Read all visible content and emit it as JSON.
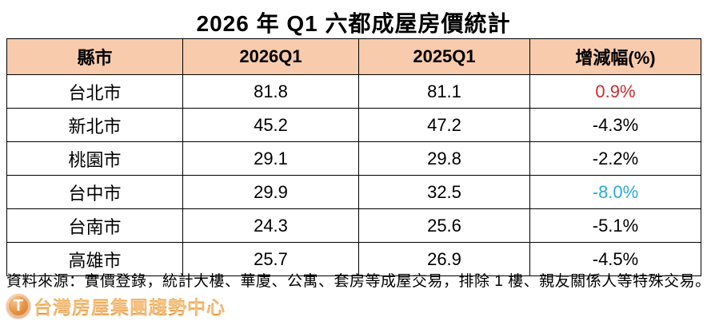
{
  "title": "2026 年 Q1  六都成屋房價統計",
  "table": {
    "headers": [
      "縣市",
      "2026Q1",
      "2025Q1",
      "增減幅(%)"
    ],
    "rows": [
      {
        "city": "台北市",
        "y2026q1": "81.8",
        "y2025q1": "81.1",
        "change": "0.9%",
        "change_color": "positive"
      },
      {
        "city": "新北市",
        "y2026q1": "45.2",
        "y2025q1": "47.2",
        "change": "-4.3%",
        "change_color": "default"
      },
      {
        "city": "桃園市",
        "y2026q1": "29.1",
        "y2025q1": "29.8",
        "change": "-2.2%",
        "change_color": "default"
      },
      {
        "city": "台中市",
        "y2026q1": "29.9",
        "y2025q1": "32.5",
        "change": "-8.0%",
        "change_color": "highlight_negative"
      },
      {
        "city": "台南市",
        "y2026q1": "24.3",
        "y2025q1": "25.6",
        "change": "-5.1%",
        "change_color": "default"
      },
      {
        "city": "高雄市",
        "y2026q1": "25.7",
        "y2025q1": "26.9",
        "change": "-4.5%",
        "change_color": "default"
      }
    ]
  },
  "footnote": "資料來源：實價登錄，統計大樓、華廈、公寓、套房等成屋交易，排除 1 樓、親友關係人等特殊交易。",
  "logo": {
    "badge_letter": "T",
    "text": "台灣房屋集團趨勢中心"
  },
  "colors": {
    "header_bg": "#F8CBAD",
    "positive": "#D02B2B",
    "highlight_negative": "#29A9DC",
    "default": "#000000",
    "logo_orange": "#E8821E"
  }
}
